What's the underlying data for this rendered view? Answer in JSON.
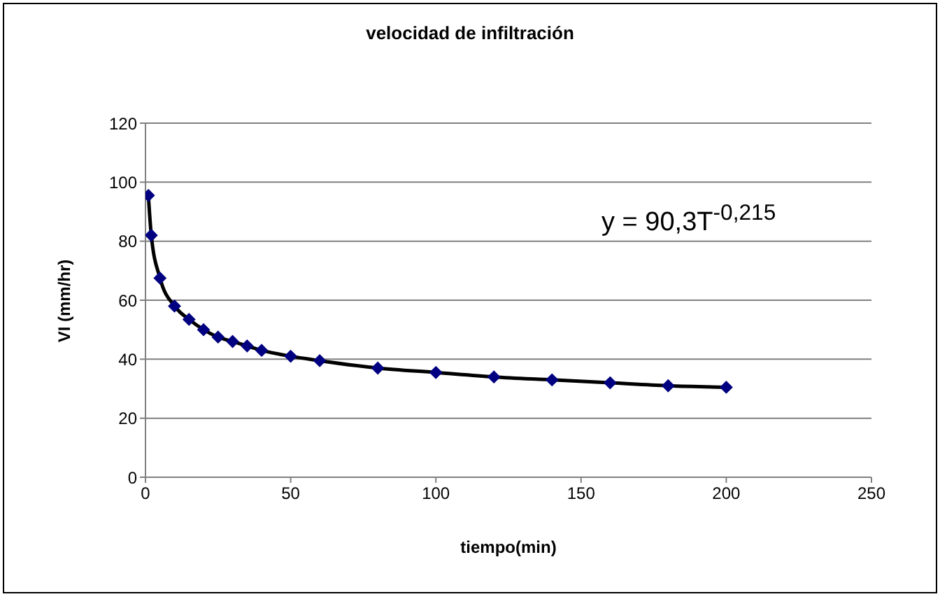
{
  "chart_data": {
    "type": "line",
    "title": "velocidad de infiltración",
    "xlabel": "tiempo(min)",
    "ylabel": "VI (mm/hr)",
    "x": [
      1,
      2,
      5,
      10,
      15,
      20,
      25,
      30,
      35,
      40,
      50,
      60,
      80,
      100,
      120,
      140,
      160,
      180,
      200
    ],
    "series": [
      {
        "type": "line",
        "color": "#000000",
        "marker": "none",
        "values": [
          95.5,
          82,
          67.5,
          58,
          53.5,
          50,
          47.5,
          46,
          44.5,
          43,
          41,
          39.5,
          37,
          35.5,
          34,
          33,
          32,
          31,
          30.5
        ]
      },
      {
        "type": "scatter",
        "color": "#000080",
        "marker": "diamond",
        "values": [
          95.5,
          82,
          67.5,
          58,
          53.5,
          50,
          47.5,
          46,
          44.5,
          43,
          41,
          39.5,
          37,
          35.5,
          34,
          33,
          32,
          31,
          30.5
        ]
      }
    ],
    "xlim": [
      0,
      250
    ],
    "xticks": [
      0,
      50,
      100,
      150,
      200,
      250
    ],
    "ylim": [
      0,
      120
    ],
    "yticks": [
      0,
      20,
      40,
      60,
      80,
      100,
      120
    ],
    "grid": "y",
    "annotations": [
      "y = 90,3T$^{-0,215}$"
    ]
  }
}
